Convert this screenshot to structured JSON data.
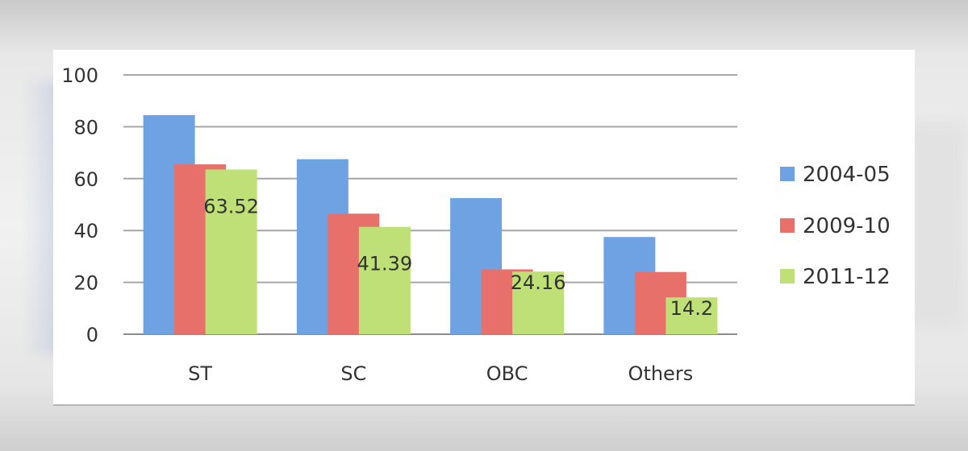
{
  "chart_data": {
    "type": "bar",
    "categories": [
      "ST",
      "SC",
      "OBC",
      "Others"
    ],
    "series": [
      {
        "name": "2004-05",
        "color": "#6fa2e3",
        "values": [
          84.5,
          67.5,
          52.5,
          37.5
        ]
      },
      {
        "name": "2009-10",
        "color": "#e8706a",
        "values": [
          65.5,
          46.5,
          25.0,
          24.0
        ]
      },
      {
        "name": "2011-12",
        "color": "#bfe076",
        "values": [
          63.52,
          41.39,
          24.16,
          14.2
        ]
      }
    ],
    "data_labels": [
      {
        "series": 2,
        "category": 0,
        "text": "63.52"
      },
      {
        "series": 2,
        "category": 1,
        "text": "41.39"
      },
      {
        "series": 2,
        "category": 2,
        "text": "24.16"
      },
      {
        "series": 2,
        "category": 3,
        "text": "14.2"
      }
    ],
    "yticks": [
      "0",
      "20",
      "40",
      "60",
      "80",
      "100"
    ],
    "ylim": [
      0,
      100
    ],
    "grid": true,
    "legend_position": "right",
    "title": "",
    "xlabel": "",
    "ylabel": ""
  }
}
